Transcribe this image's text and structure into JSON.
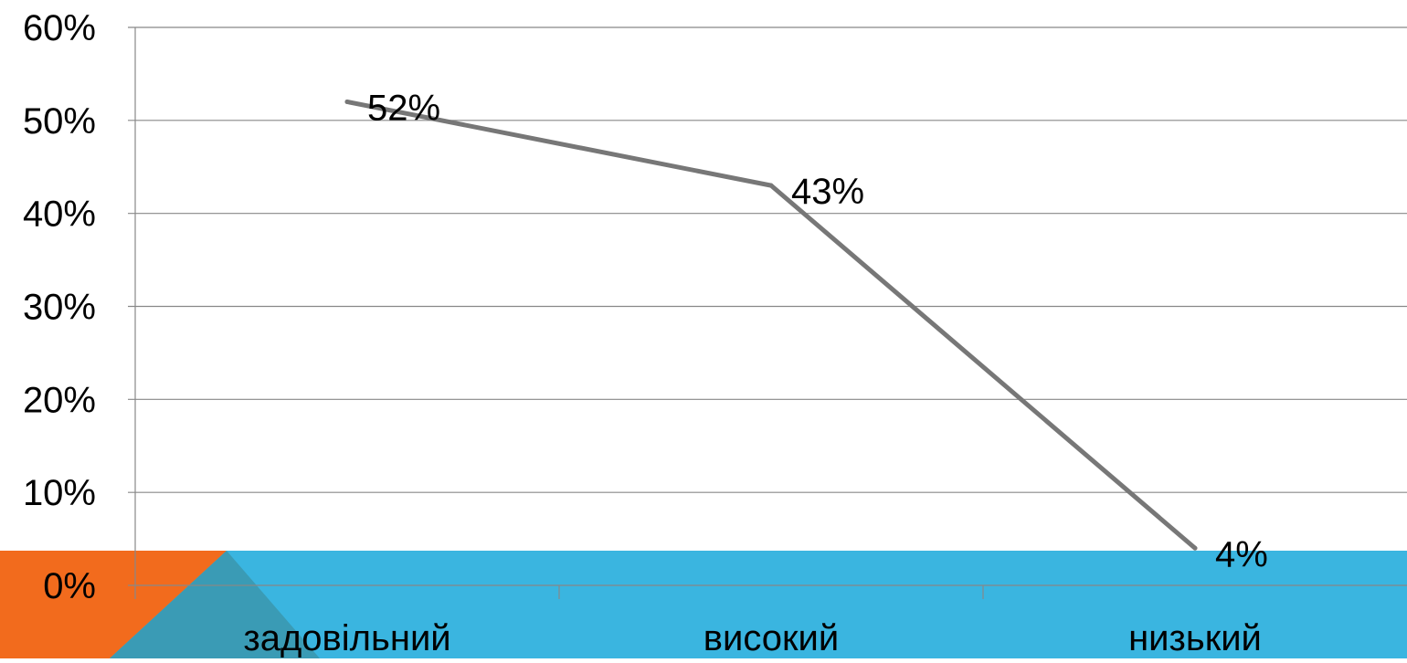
{
  "chart_data": {
    "type": "line",
    "categories": [
      "задовільний",
      "високий",
      "низький"
    ],
    "series": [
      {
        "values": [
          52,
          43,
          4
        ]
      }
    ],
    "data_labels": [
      "52%",
      "43%",
      "4%"
    ],
    "y_tick_labels": [
      "0%",
      "10%",
      "20%",
      "30%",
      "40%",
      "50%",
      "60%"
    ],
    "ylim": [
      0,
      60
    ],
    "grid": true,
    "legend": "none"
  },
  "colors": {
    "line": "#777777",
    "gridline": "#888888",
    "footer_band": "#3ab5e0",
    "accent_orange": "#f26b1d",
    "accent_teal": "#3a9bb5"
  }
}
